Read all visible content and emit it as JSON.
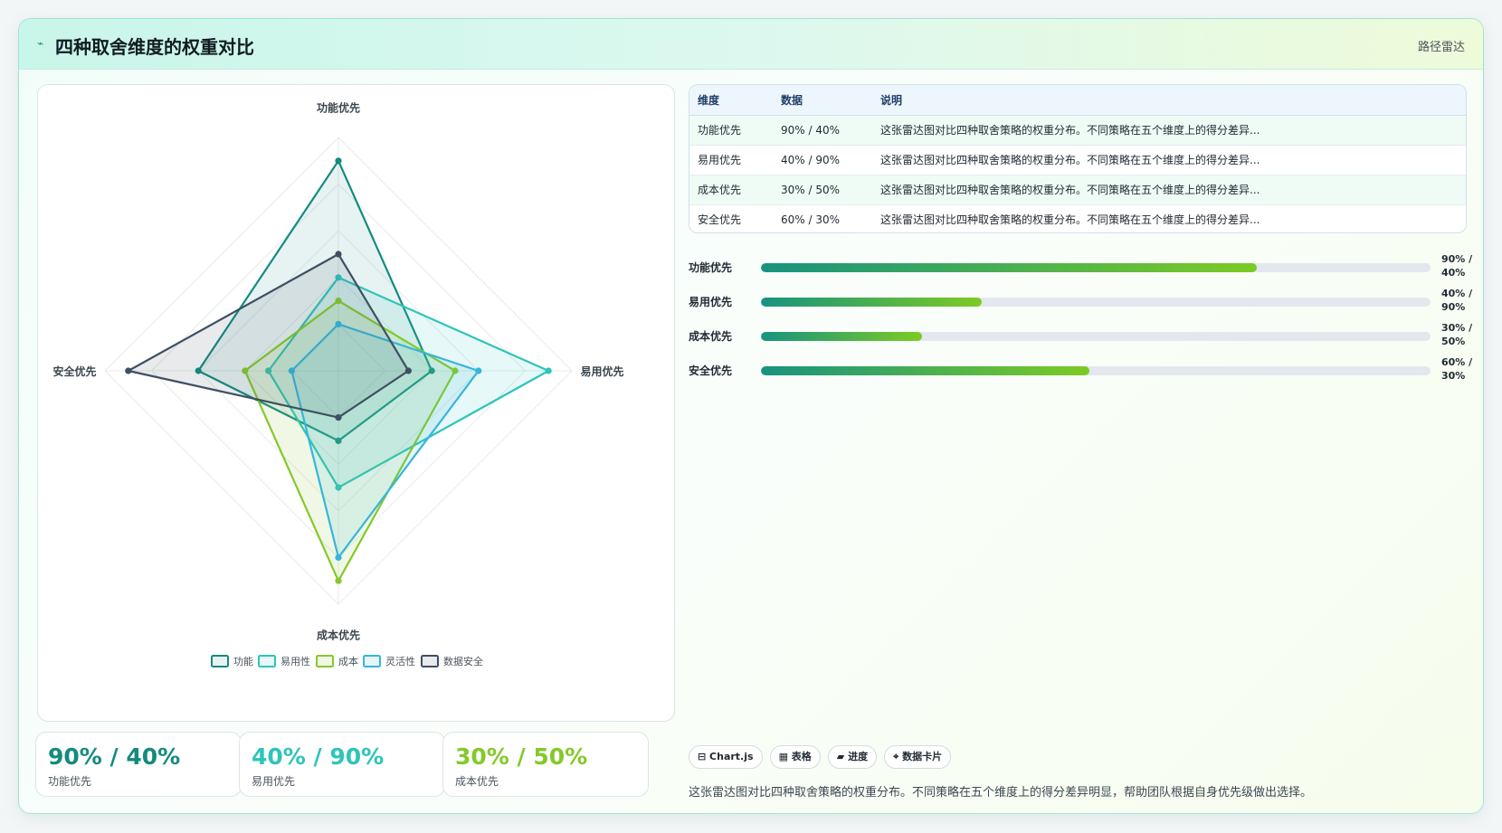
{
  "header": {
    "title": "四种取舍维度的权重对比",
    "tag": "路径雷达"
  },
  "chart_data": {
    "type": "radar",
    "axes": [
      "功能优先",
      "易用优先",
      "成本优先",
      "安全优先"
    ],
    "rmax": 100,
    "series": [
      {
        "name": "功能",
        "values": [
          90,
          40,
          30,
          60
        ],
        "color": "#138b7e",
        "fill": "rgba(19,139,126,0.10)"
      },
      {
        "name": "易用性",
        "values": [
          40,
          90,
          50,
          30
        ],
        "color": "#2ec4bb",
        "fill": "rgba(46,196,187,0.12)"
      },
      {
        "name": "成本",
        "values": [
          30,
          50,
          90,
          40
        ],
        "color": "#84c92a",
        "fill": "rgba(132,201,42,0.12)"
      },
      {
        "name": "灵活性",
        "values": [
          20,
          60,
          80,
          20
        ],
        "color": "#35b6da",
        "fill": "rgba(53,182,218,0.12)"
      },
      {
        "name": "数据安全",
        "values": [
          50,
          30,
          20,
          90
        ],
        "color": "#3e4f63",
        "fill": "rgba(62,79,99,0.12)"
      }
    ]
  },
  "stats": [
    {
      "value": "90% / 40%",
      "label": "功能优先",
      "color": "#138b7e"
    },
    {
      "value": "40% / 90%",
      "label": "易用优先",
      "color": "#2ec4bb"
    },
    {
      "value": "30% / 50%",
      "label": "成本优先",
      "color": "#84c92a"
    }
  ],
  "table": {
    "headers": [
      "维度",
      "数据",
      "说明"
    ],
    "rows": [
      [
        "功能优先",
        "90% / 40%",
        "这张雷达图对比四种取舍策略的权重分布。不同策略在五个维度上的得分差异..."
      ],
      [
        "易用优先",
        "40% / 90%",
        "这张雷达图对比四种取舍策略的权重分布。不同策略在五个维度上的得分差异..."
      ],
      [
        "成本优先",
        "30% / 50%",
        "这张雷达图对比四种取舍策略的权重分布。不同策略在五个维度上的得分差异..."
      ],
      [
        "安全优先",
        "60% / 30%",
        "这张雷达图对比四种取舍策略的权重分布。不同策略在五个维度上的得分差异..."
      ]
    ]
  },
  "progress": [
    {
      "label": "功能优先",
      "value_text": "90% / 40%",
      "pct": 74
    },
    {
      "label": "易用优先",
      "value_text": "40% / 90%",
      "pct": 33
    },
    {
      "label": "成本优先",
      "value_text": "30% / 50%",
      "pct": 24
    },
    {
      "label": "安全优先",
      "value_text": "60% / 30%",
      "pct": 49
    }
  ],
  "chips": [
    "⊟ Chart.js",
    "▦ 表格",
    "▰ 进度",
    "⌖ 数据卡片"
  ],
  "footer": "这张雷达图对比四种取舍策略的权重分布。不同策略在五个维度上的得分差异明显，帮助团队根据自身优先级做出选择。"
}
